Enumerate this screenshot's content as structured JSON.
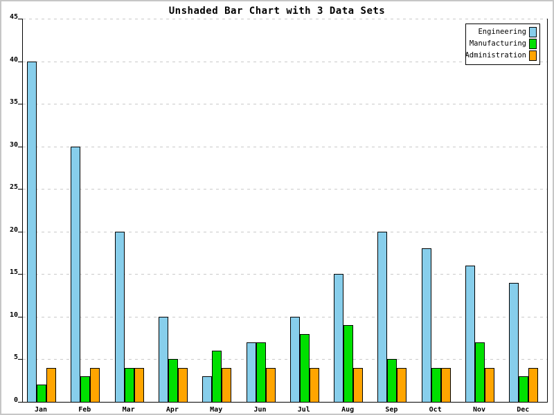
{
  "chart_data": {
    "type": "bar",
    "title": "Unshaded Bar Chart with 3 Data Sets",
    "categories": [
      "Jan",
      "Feb",
      "Mar",
      "Apr",
      "May",
      "Jun",
      "Jul",
      "Aug",
      "Sep",
      "Oct",
      "Nov",
      "Dec"
    ],
    "series": [
      {
        "name": "Engineering",
        "color": "#87CEEB",
        "values": [
          40,
          30,
          20,
          10,
          3,
          7,
          10,
          15,
          20,
          18,
          16,
          14
        ]
      },
      {
        "name": "Manufacturing",
        "color": "#00E000",
        "values": [
          2,
          3,
          4,
          5,
          6,
          7,
          8,
          9,
          5,
          4,
          7,
          3
        ]
      },
      {
        "name": "Administration",
        "color": "#FFA500",
        "values": [
          4,
          4,
          4,
          4,
          4,
          4,
          4,
          4,
          4,
          4,
          4,
          4
        ]
      }
    ],
    "xlabel": "",
    "ylabel": "",
    "ylim": [
      0,
      45
    ],
    "ytick_step": 5,
    "ytick_labels": [
      "0",
      "5",
      "10",
      "15",
      "20",
      "25",
      "30",
      "35",
      "40",
      "45"
    ],
    "grid": "horizontal-dashed",
    "legend_position": "top-right"
  },
  "style": {
    "background": "#ffffff",
    "outer_border_color": "#c6c6c6",
    "grid_color": "#c9c9c9",
    "axis_color": "#000000",
    "text_color": "#000000"
  }
}
